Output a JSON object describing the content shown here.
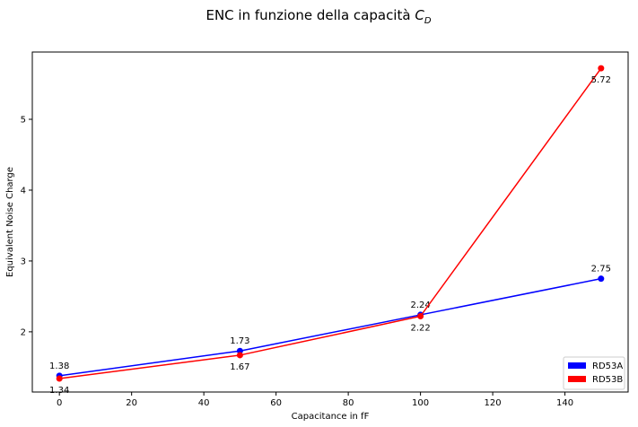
{
  "chart_data": {
    "type": "line",
    "title_main": "ENC in funzione della capacità ",
    "title_math": "C",
    "title_sub": "D",
    "xlabel": "Capacitance in fF",
    "ylabel": "Equivalent Noise Charge",
    "xlim": [
      -7.5,
      157.5
    ],
    "ylim": [
      1.15,
      5.95
    ],
    "xticks": [
      0,
      20,
      40,
      60,
      80,
      100,
      120,
      140
    ],
    "yticks": [
      2,
      3,
      4,
      5
    ],
    "grid": false,
    "legend_position": "lower right",
    "series": [
      {
        "name": "RD53A",
        "color": "#0000ff",
        "x": [
          0,
          50,
          100,
          150
        ],
        "y": [
          1.38,
          1.73,
          2.24,
          2.75
        ],
        "labels": [
          "1.38",
          "1.73",
          "2.24",
          "2.75"
        ],
        "label_position": "above"
      },
      {
        "name": "RD53B",
        "color": "#ff0000",
        "x": [
          0,
          50,
          100,
          150
        ],
        "y": [
          1.34,
          1.67,
          2.22,
          5.72
        ],
        "labels": [
          "1.34",
          "1.67",
          "2.22",
          "5.72"
        ],
        "label_position": "below"
      }
    ]
  }
}
